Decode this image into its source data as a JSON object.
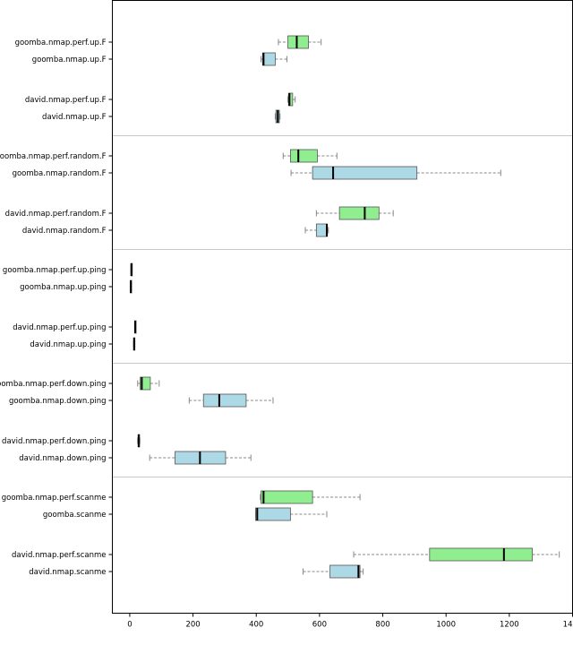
{
  "chart_data": {
    "type": "boxplot",
    "orientation": "horizontal",
    "xlim": [
      -55,
      1400
    ],
    "x_ticks": [
      0,
      200,
      400,
      600,
      800,
      1000,
      1200,
      1400
    ],
    "grid": false,
    "colors": {
      "perf": "#90ee90",
      "base": "#add8e6",
      "line": "#000000",
      "separator": "#c8c8c8"
    },
    "panels": [
      {
        "rows": [
          {
            "label": "goomba.nmap.perf.up.F",
            "color": "perf",
            "whisker_low": 470,
            "q1": 500,
            "median": 528,
            "q3": 565,
            "whisker_high": 605
          },
          {
            "label": "goomba.nmap.up.F",
            "color": "base",
            "whisker_low": 415,
            "q1": 420,
            "median": 423,
            "q3": 460,
            "whisker_high": 497
          },
          {
            "label": "david.nmap.perf.up.F",
            "color": "perf",
            "whisker_low": 500,
            "q1": 502,
            "median": 505,
            "q3": 515,
            "whisker_high": 523
          },
          {
            "label": "david.nmap.up.F",
            "color": "base",
            "whisker_low": 460,
            "q1": 462,
            "median": 468,
            "q3": 473,
            "whisker_high": 475
          }
        ]
      },
      {
        "rows": [
          {
            "label": "goomba.nmap.perf.random.F",
            "color": "perf",
            "whisker_low": 485,
            "q1": 508,
            "median": 533,
            "q3": 593,
            "whisker_high": 655
          },
          {
            "label": "goomba.nmap.random.F",
            "color": "base",
            "whisker_low": 510,
            "q1": 578,
            "median": 643,
            "q3": 908,
            "whisker_high": 1173
          },
          {
            "label": "david.nmap.perf.random.F",
            "color": "perf",
            "whisker_low": 590,
            "q1": 663,
            "median": 743,
            "q3": 788,
            "whisker_high": 833
          },
          {
            "label": "david.nmap.random.F",
            "color": "base",
            "whisker_low": 555,
            "q1": 590,
            "median": 623,
            "q3": 625,
            "whisker_high": 628
          }
        ]
      },
      {
        "rows": [
          {
            "label": "goomba.nmap.perf.up.ping",
            "color": "perf",
            "whisker_low": 4,
            "q1": 4,
            "median": 5,
            "q3": 6,
            "whisker_high": 6
          },
          {
            "label": "goomba.nmap.up.ping",
            "color": "base",
            "whisker_low": 2,
            "q1": 2,
            "median": 3,
            "q3": 3,
            "whisker_high": 3
          },
          {
            "label": "david.nmap.perf.up.ping",
            "color": "perf",
            "whisker_low": 16,
            "q1": 16,
            "median": 17,
            "q3": 18,
            "whisker_high": 18
          },
          {
            "label": "david.nmap.up.ping",
            "color": "base",
            "whisker_low": 12,
            "q1": 12,
            "median": 14,
            "q3": 16,
            "whisker_high": 16
          }
        ]
      },
      {
        "rows": [
          {
            "label": "goomba.nmap.perf.down.ping",
            "color": "perf",
            "whisker_low": 25,
            "q1": 33,
            "median": 38,
            "q3": 65,
            "whisker_high": 93
          },
          {
            "label": "goomba.nmap.down.ping",
            "color": "base",
            "whisker_low": 188,
            "q1": 233,
            "median": 283,
            "q3": 368,
            "whisker_high": 453
          },
          {
            "label": "david.nmap.perf.down.ping",
            "color": "perf",
            "whisker_low": 25,
            "q1": 27,
            "median": 28,
            "q3": 30,
            "whisker_high": 32
          },
          {
            "label": "david.nmap.down.ping",
            "color": "base",
            "whisker_low": 63,
            "q1": 143,
            "median": 222,
            "q3": 303,
            "whisker_high": 383
          }
        ]
      },
      {
        "rows": [
          {
            "label": "goomba.nmap.perf.scanme",
            "color": "perf",
            "whisker_low": 413,
            "q1": 415,
            "median": 423,
            "q3": 578,
            "whisker_high": 728
          },
          {
            "label": "goomba.scanme",
            "color": "base",
            "whisker_low": 398,
            "q1": 398,
            "median": 403,
            "q3": 508,
            "whisker_high": 623
          },
          {
            "label": "david.nmap.perf.scanme",
            "color": "perf",
            "whisker_low": 708,
            "q1": 948,
            "median": 1183,
            "q3": 1273,
            "whisker_high": 1358
          },
          {
            "label": "david.nmap.scanme",
            "color": "base",
            "whisker_low": 548,
            "q1": 633,
            "median": 723,
            "q3": 728,
            "whisker_high": 738
          }
        ]
      }
    ]
  }
}
